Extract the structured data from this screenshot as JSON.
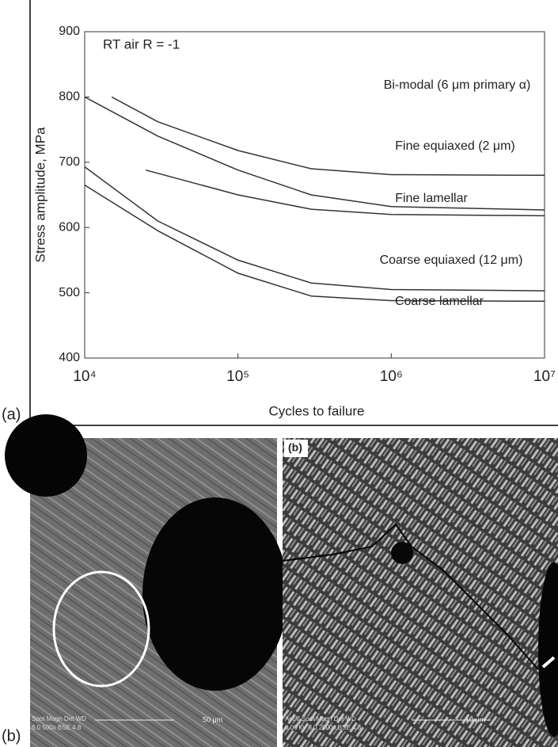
{
  "chart_data": {
    "type": "line",
    "annotation": "RT air R = -1",
    "xlabel": "Cycles to failure",
    "ylabel": "Stress amplitude, MPa",
    "log_x": true,
    "xlim": [
      10000,
      10000000
    ],
    "xticks": [
      {
        "value": 10000,
        "label": "10⁴"
      },
      {
        "value": 100000,
        "label": "10⁵"
      },
      {
        "value": 1000000,
        "label": "10⁶"
      },
      {
        "value": 10000000,
        "label": "10⁷"
      }
    ],
    "ylim": [
      400,
      900
    ],
    "yticks": [
      400,
      500,
      600,
      700,
      800,
      900
    ],
    "series": [
      {
        "name": "Bi-modal (6 μm primary α)",
        "color": "#333333",
        "x": [
          15000,
          30000,
          100000,
          300000,
          1000000,
          10000000
        ],
        "values": [
          800,
          762,
          718,
          690,
          681,
          680
        ]
      },
      {
        "name": "Fine equiaxed (2 μm)",
        "color": "#333333",
        "x": [
          10000,
          30000,
          100000,
          300000,
          1000000,
          10000000
        ],
        "values": [
          800,
          740,
          688,
          650,
          632,
          627
        ]
      },
      {
        "name": "Fine lamellar",
        "color": "#333333",
        "x": [
          25000,
          100000,
          300000,
          1000000,
          10000000
        ],
        "values": [
          688,
          650,
          628,
          620,
          618
        ]
      },
      {
        "name": "Coarse equiaxed (12 μm)",
        "color": "#333333",
        "x": [
          10000,
          30000,
          100000,
          300000,
          1000000,
          10000000
        ],
        "values": [
          693,
          610,
          550,
          515,
          505,
          503
        ]
      },
      {
        "name": "Coarse lamellar",
        "color": "#333333",
        "x": [
          10000,
          30000,
          100000,
          300000,
          1000000,
          10000000
        ],
        "values": [
          665,
          595,
          530,
          495,
          488,
          487
        ]
      }
    ]
  },
  "panel_labels": [
    "(a)",
    "(b)"
  ],
  "micrographs": [
    {
      "scale_bar": "50 μm",
      "info": [
        "Spot Magn   Det  WD",
        "6.0  500x   BSE 4.8"
      ]
    },
    {
      "inset_label": "(b)",
      "scale_bar": "10 μm",
      "info": [
        "AccV  Spot Magn   Det  WD",
        "0.00 kV 6.0  2000x  BSE 4.8"
      ]
    }
  ]
}
